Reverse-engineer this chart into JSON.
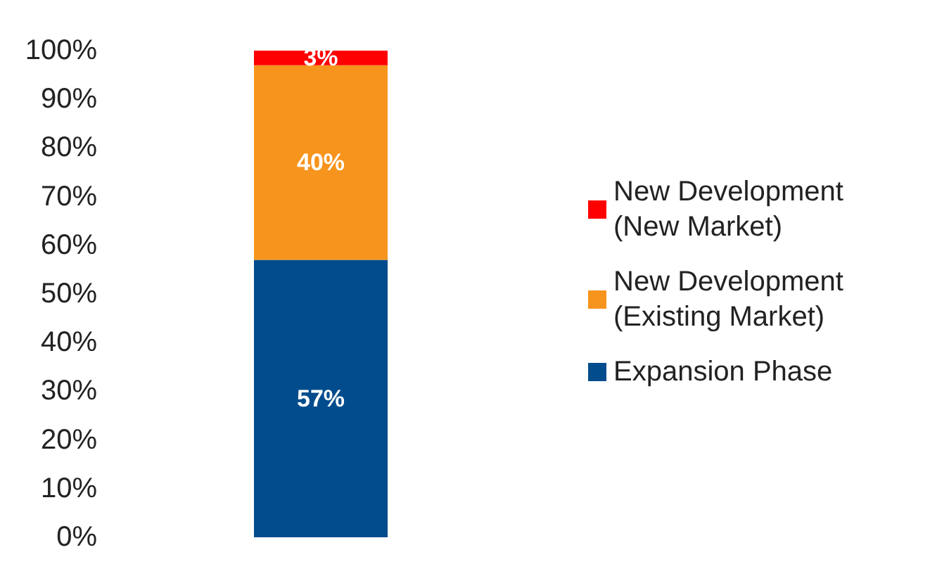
{
  "chart_data": {
    "type": "bar",
    "stacked": true,
    "categories": [
      null
    ],
    "series": [
      {
        "name": "Expansion Phase",
        "color": "#004c8c",
        "values": [
          57
        ],
        "value_labels": [
          "57%"
        ]
      },
      {
        "name": "New Development\n(Existing Market)",
        "color": "#f7941d",
        "values": [
          40
        ],
        "value_labels": [
          "40%"
        ]
      },
      {
        "name": "New Development\n(New Market)",
        "color": "#ff0000",
        "values": [
          3
        ],
        "value_labels": [
          "3%"
        ]
      }
    ],
    "ylim": [
      0,
      100
    ],
    "yticks": [
      {
        "value": 0,
        "label": "0%"
      },
      {
        "value": 10,
        "label": "10%"
      },
      {
        "value": 20,
        "label": "20%"
      },
      {
        "value": 30,
        "label": "30%"
      },
      {
        "value": 40,
        "label": "40%"
      },
      {
        "value": 50,
        "label": "50%"
      },
      {
        "value": 60,
        "label": "60%"
      },
      {
        "value": 70,
        "label": "70%"
      },
      {
        "value": 80,
        "label": "80%"
      },
      {
        "value": 90,
        "label": "90%"
      },
      {
        "value": 100,
        "label": "100%"
      }
    ],
    "grid": false,
    "legend": "right"
  }
}
